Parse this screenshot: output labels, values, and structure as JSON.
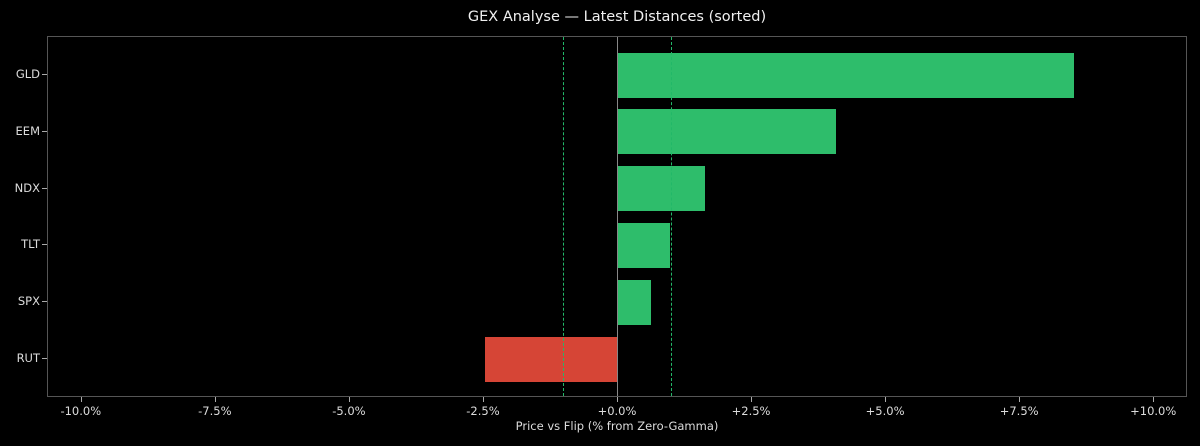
{
  "chart_data": {
    "type": "bar",
    "orientation": "horizontal",
    "title": "GEX Analyse — Latest Distances (sorted)",
    "xlabel": "Price vs Flip (% from Zero-Gamma)",
    "ylabel": "",
    "xlim": [
      -10.63,
      10.63
    ],
    "xticks": [
      -10.0,
      -7.5,
      -5.0,
      -2.5,
      0.0,
      2.5,
      5.0,
      7.5,
      10.0
    ],
    "xtick_labels": [
      "-10.0%",
      "-7.5%",
      "-5.0%",
      "-2.5%",
      "+0.0%",
      "+2.5%",
      "+5.0%",
      "+7.5%",
      "+10.0%"
    ],
    "categories": [
      "GLD",
      "EEM",
      "NDX",
      "TLT",
      "SPX",
      "RUT"
    ],
    "values": [
      8.51,
      4.07,
      1.62,
      0.97,
      0.62,
      -2.48
    ],
    "reference_lines": [
      {
        "x": 0.0,
        "style": "solid",
        "color": "#888888"
      },
      {
        "x": -1.0,
        "style": "dashed",
        "color": "#22b868"
      },
      {
        "x": 1.0,
        "style": "dashed",
        "color": "#22b868"
      }
    ],
    "colors": {
      "positive": "#2ebd6b",
      "negative": "#d64536"
    },
    "grid": false,
    "legend": null
  }
}
